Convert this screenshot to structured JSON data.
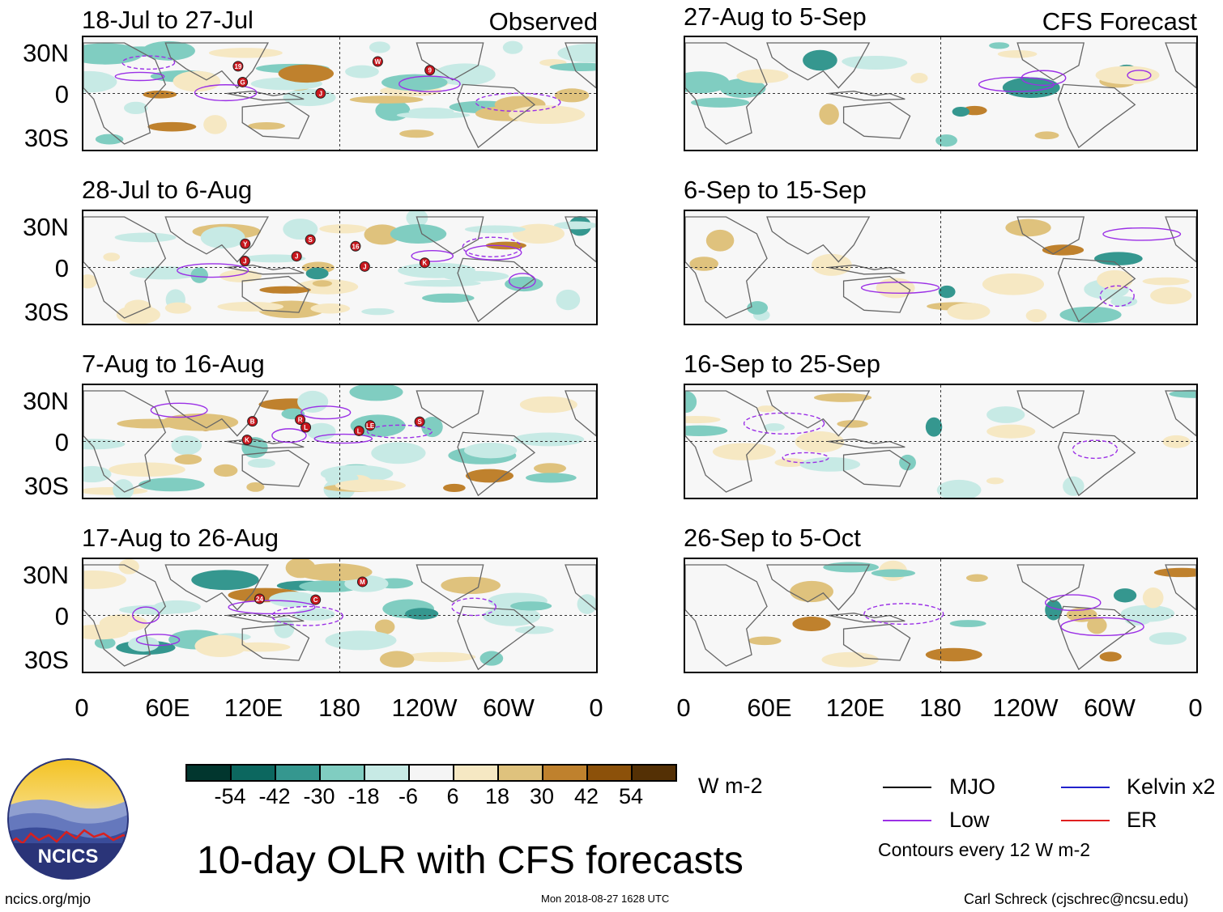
{
  "header": {
    "observed_label": "Observed",
    "forecast_label": "CFS Forecast"
  },
  "observed_panels": [
    {
      "title": "18-Jul to 27-Jul",
      "storms": [
        "19",
        "J",
        "W",
        "9",
        "G"
      ]
    },
    {
      "title": "28-Jul to 6-Aug",
      "storms": [
        "Y",
        "S",
        "16",
        "K",
        "J",
        "J",
        "J"
      ]
    },
    {
      "title": "7-Aug to 16-Aug",
      "storms": [
        "B",
        "R",
        "L",
        "S",
        "K",
        "L",
        "LE"
      ]
    },
    {
      "title": "17-Aug to 26-Aug",
      "storms": [
        "24",
        "C",
        "M"
      ]
    }
  ],
  "forecast_panels": [
    {
      "title": "27-Aug to 5-Sep"
    },
    {
      "title": "6-Sep to 15-Sep"
    },
    {
      "title": "16-Sep to 25-Sep"
    },
    {
      "title": "26-Sep to 5-Oct"
    }
  ],
  "lat_ticks": [
    "30N",
    "0",
    "30S"
  ],
  "lon_ticks": [
    "0",
    "60E",
    "120E",
    "180",
    "120W",
    "60W",
    "0"
  ],
  "colorbar": {
    "labels": [
      "-54",
      "-42",
      "-30",
      "-18",
      "-6",
      "6",
      "18",
      "30",
      "42",
      "54"
    ],
    "colors": [
      "#01362e",
      "#0c675f",
      "#35978f",
      "#80cdc1",
      "#c7eae5",
      "#f5f5f5",
      "#f6e8c3",
      "#dfc27d",
      "#bf812d",
      "#8c510a",
      "#543005"
    ],
    "units": "W m-2"
  },
  "legend": {
    "mjo": {
      "label": "MJO",
      "color": "#000000"
    },
    "kelvin": {
      "label": "Kelvin x2",
      "color": "#2222cc"
    },
    "low": {
      "label": "Low",
      "color": "#9b30e6"
    },
    "er": {
      "label": "ER",
      "color": "#e02020"
    },
    "note": "Contours every 12 W m-2"
  },
  "title": "10-day OLR with CFS forecasts",
  "logo_text": "NCICS",
  "footer": {
    "url": "ncics.org/mjo",
    "timestamp": "Mon 2018-08-27 1628 UTC",
    "author": "Carl Schreck (cjschrec@ncsu.edu)"
  }
}
